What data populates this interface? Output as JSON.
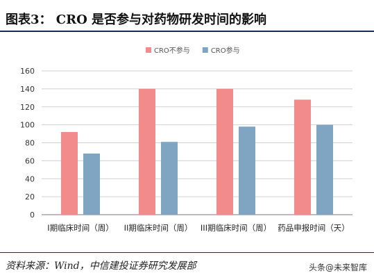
{
  "header": {
    "title": "图表3：  CRO 是否参与对药物研发时间的影响"
  },
  "footer": {
    "source": "资料来源：Wind，中信建投证券研究发展部",
    "watermark_prefix": "头条",
    "watermark_handle": "@未来智库"
  },
  "colors": {
    "series_1": "#f28b8b",
    "series_2": "#7fa5c3",
    "rule": "#1a2b57"
  },
  "chart_data": {
    "type": "bar",
    "title": "",
    "xlabel": "",
    "ylabel": "",
    "categories": [
      "I期临床时间（周）",
      "II期临床时间（周）",
      "III期临床时间（周）",
      "药品申报时间（天）"
    ],
    "series": [
      {
        "name": "CRO不参与",
        "values": [
          92,
          140,
          140,
          128
        ]
      },
      {
        "name": "CRO参与",
        "values": [
          68,
          81,
          98,
          100
        ]
      }
    ],
    "ylim": [
      0,
      160
    ],
    "yticks": [
      0,
      20,
      40,
      60,
      80,
      100,
      120,
      140,
      160
    ],
    "grid": true,
    "legend_position": "top-center"
  }
}
